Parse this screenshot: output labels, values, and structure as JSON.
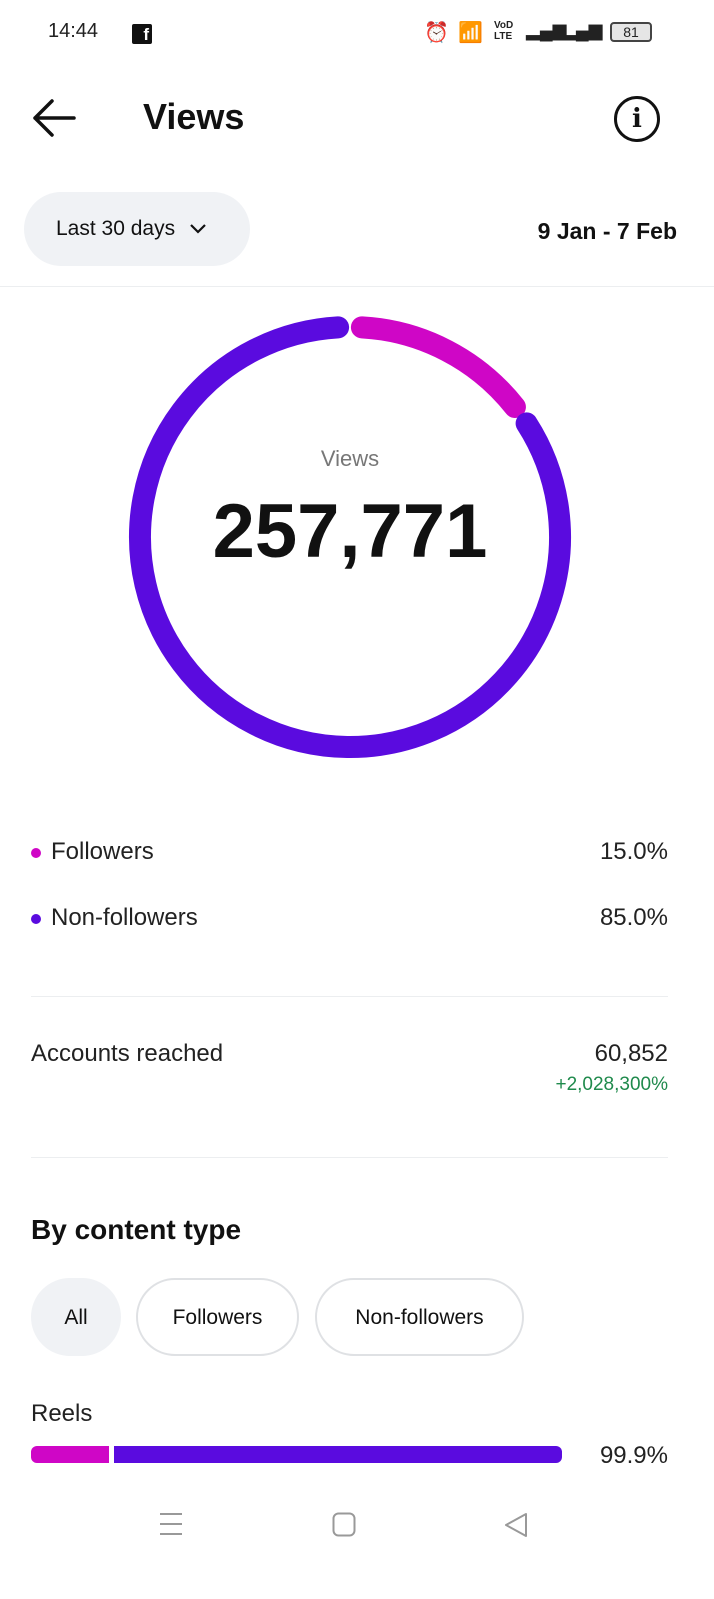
{
  "status_bar": {
    "time": "14:44",
    "app_icon": "facebook-icon",
    "icons": [
      "alarm-icon",
      "wifi-icon",
      "volte-icon",
      "signal-icon",
      "signal-icon"
    ],
    "volte": "VoD LTE",
    "battery": "81"
  },
  "header": {
    "title": "Views",
    "back_icon": "arrow-left-icon",
    "info_icon": "info-icon",
    "info_glyph": "i"
  },
  "filter": {
    "range_label": "Last 30 days",
    "dates": "9 Jan - 7 Feb"
  },
  "donut": {
    "label": "Views",
    "value": "257,771",
    "followers_pct": 15.0,
    "non_followers_pct": 85.0
  },
  "colors": {
    "followers": "#CF06C6",
    "non_followers": "#5A0BDF",
    "positive": "#1F8A4C"
  },
  "breakdown": [
    {
      "label": "Followers",
      "value": "15.0%"
    },
    {
      "label": "Non-followers",
      "value": "85.0%"
    }
  ],
  "accounts_reached": {
    "label": "Accounts reached",
    "value": "60,852",
    "change": "+2,028,300%"
  },
  "content_type": {
    "title": "By content type",
    "chips": [
      "All",
      "Followers",
      "Non-followers"
    ],
    "selected": "All",
    "items": [
      {
        "label": "Reels",
        "value": "99.9%",
        "pct": 99.9,
        "followers_share": 15.0
      }
    ]
  },
  "nav": [
    "menu-icon",
    "home-icon",
    "back-icon"
  ]
}
